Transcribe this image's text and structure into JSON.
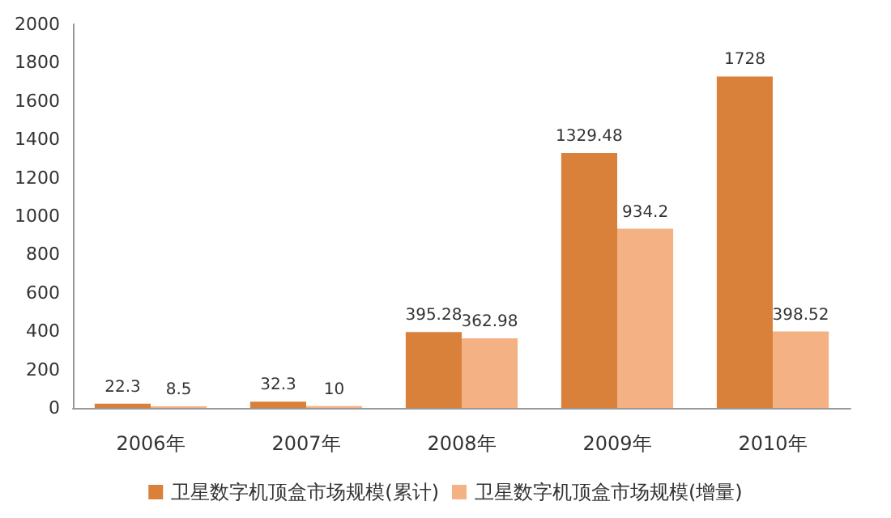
{
  "chart_data": {
    "type": "bar",
    "categories": [
      "2006年",
      "2007年",
      "2008年",
      "2009年",
      "2010年"
    ],
    "series": [
      {
        "name": "卫星数字机顶盒市场规模(累计)",
        "color": "#d9803a",
        "values": [
          22.3,
          32.3,
          395.28,
          1329.48,
          1728
        ]
      },
      {
        "name": "卫星数字机顶盒市场规模(增量)",
        "color": "#f4b183",
        "values": [
          8.5,
          10,
          362.98,
          934.2,
          398.52
        ]
      }
    ],
    "ylim": [
      0,
      2000
    ],
    "yticks": [
      0,
      200,
      400,
      600,
      800,
      1000,
      1200,
      1400,
      1600,
      1800,
      2000
    ],
    "grid": false,
    "legend": "bottom",
    "data_labels": true
  }
}
